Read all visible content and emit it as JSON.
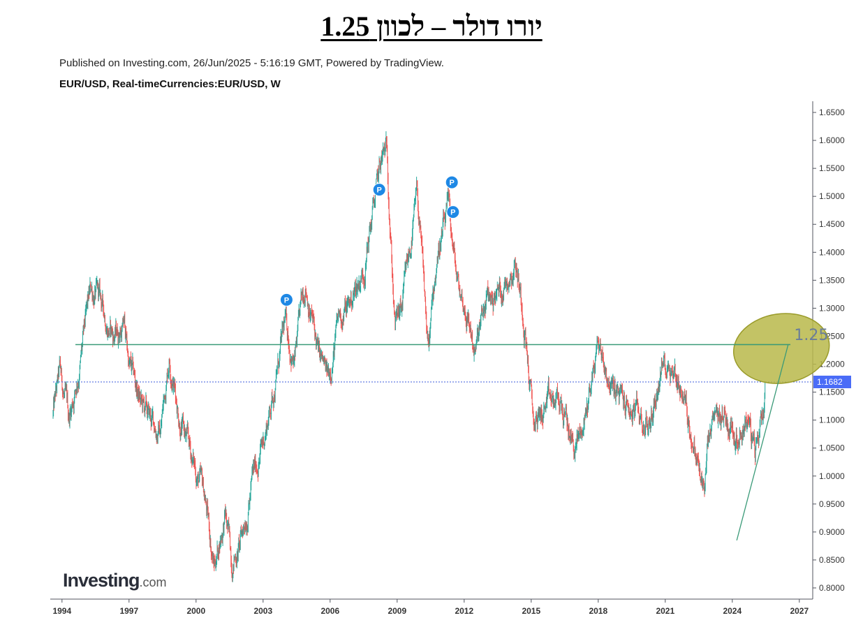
{
  "headline": "יורו דולר – לכוון 1.25",
  "published": "Published on Investing.com, 26/Jun/2025 - 5:16:19 GMT, Powered by TradingView.",
  "symbol": "EUR/USD, Real-timeCurrencies:EUR/USD, W",
  "logo": {
    "brand": "Investing",
    "domain": ".com"
  },
  "colors": {
    "up": "#26a69a",
    "down": "#ef5350",
    "level_line": "#3a9a78",
    "price_line": "#3b5bdb",
    "price_tag": "#4a6cf7",
    "pin": "#1e88e5",
    "ellipse_fill": "#b8b94a",
    "ellipse_stroke": "#9a9b2a",
    "target_text": "#6a7d9a"
  },
  "chart_data": {
    "type": "candlestick",
    "interval": "W",
    "xlim": [
      1993.6,
      2027.6
    ],
    "ylim": [
      0.78,
      1.67
    ],
    "y_ticks": [
      "1.6500",
      "1.6000",
      "1.5500",
      "1.5000",
      "1.4500",
      "1.4000",
      "1.3500",
      "1.3000",
      "1.2500",
      "1.2000",
      "1.1500",
      "1.1000",
      "1.0500",
      "1.0000",
      "0.9500",
      "0.9000",
      "0.8500",
      "0.8000"
    ],
    "x_ticks": [
      "1994",
      "1997",
      "2000",
      "2003",
      "2006",
      "2009",
      "2012",
      "2015",
      "2018",
      "2021",
      "2024",
      "2027"
    ],
    "path": [
      [
        1993.6,
        1.11
      ],
      [
        1993.9,
        1.18
      ],
      [
        1994.3,
        1.1
      ],
      [
        1994.8,
        1.2
      ],
      [
        1995.3,
        1.33
      ],
      [
        1995.6,
        1.32
      ],
      [
        1996.3,
        1.25
      ],
      [
        1996.8,
        1.27
      ],
      [
        1997.0,
        1.2
      ],
      [
        1997.6,
        1.12
      ],
      [
        1997.9,
        1.1
      ],
      [
        1998.4,
        1.08
      ],
      [
        1998.8,
        1.22
      ],
      [
        1999.3,
        1.1
      ],
      [
        1999.9,
        1.02
      ],
      [
        2000.4,
        0.96
      ],
      [
        2000.8,
        0.84
      ],
      [
        2001.3,
        0.93
      ],
      [
        2001.6,
        0.85
      ],
      [
        2002.0,
        0.88
      ],
      [
        2002.5,
        0.99
      ],
      [
        2003.0,
        1.06
      ],
      [
        2003.5,
        1.16
      ],
      [
        2004.0,
        1.27
      ],
      [
        2004.4,
        1.2
      ],
      [
        2004.9,
        1.35
      ],
      [
        2005.5,
        1.21
      ],
      [
        2005.9,
        1.17
      ],
      [
        2006.4,
        1.28
      ],
      [
        2006.9,
        1.31
      ],
      [
        2007.5,
        1.37
      ],
      [
        2007.9,
        1.47
      ],
      [
        2008.3,
        1.56
      ],
      [
        2008.55,
        1.58
      ],
      [
        2008.9,
        1.27
      ],
      [
        2009.2,
        1.29
      ],
      [
        2009.9,
        1.5
      ],
      [
        2010.4,
        1.22
      ],
      [
        2010.8,
        1.4
      ],
      [
        2011.3,
        1.47
      ],
      [
        2011.7,
        1.34
      ],
      [
        2012.2,
        1.28
      ],
      [
        2012.5,
        1.22
      ],
      [
        2013.0,
        1.31
      ],
      [
        2013.6,
        1.33
      ],
      [
        2014.3,
        1.39
      ],
      [
        2014.7,
        1.28
      ],
      [
        2015.1,
        1.09
      ],
      [
        2015.6,
        1.12
      ],
      [
        2016.3,
        1.13
      ],
      [
        2016.9,
        1.05
      ],
      [
        2017.3,
        1.08
      ],
      [
        2018.0,
        1.24
      ],
      [
        2018.6,
        1.16
      ],
      [
        2019.3,
        1.12
      ],
      [
        2019.9,
        1.1
      ],
      [
        2020.3,
        1.09
      ],
      [
        2020.8,
        1.19
      ],
      [
        2021.2,
        1.21
      ],
      [
        2021.8,
        1.15
      ],
      [
        2022.3,
        1.05
      ],
      [
        2022.7,
        0.97
      ],
      [
        2023.0,
        1.07
      ],
      [
        2023.6,
        1.11
      ],
      [
        2024.2,
        1.08
      ],
      [
        2024.7,
        1.11
      ],
      [
        2025.0,
        1.03
      ],
      [
        2025.4,
        1.13
      ],
      [
        2025.48,
        1.168
      ]
    ],
    "last_price": "1.1682",
    "last_price_value": 1.1682,
    "horizontal_level": 1.235,
    "trendline": {
      "from": [
        2024.2,
        0.885
      ],
      "to": [
        2026.5,
        1.235
      ]
    },
    "target_label": "1.25",
    "target_ellipse": {
      "center": [
        2026.2,
        1.228
      ],
      "radius_x_years": 2.15,
      "radius_y": 0.062
    },
    "markers": [
      {
        "label": "P",
        "x": 2004.05,
        "y": 1.315
      },
      {
        "label": "P",
        "x": 2008.2,
        "y": 1.512
      },
      {
        "label": "P",
        "x": 2011.45,
        "y": 1.525
      },
      {
        "label": "P",
        "x": 2011.5,
        "y": 1.472
      }
    ]
  }
}
